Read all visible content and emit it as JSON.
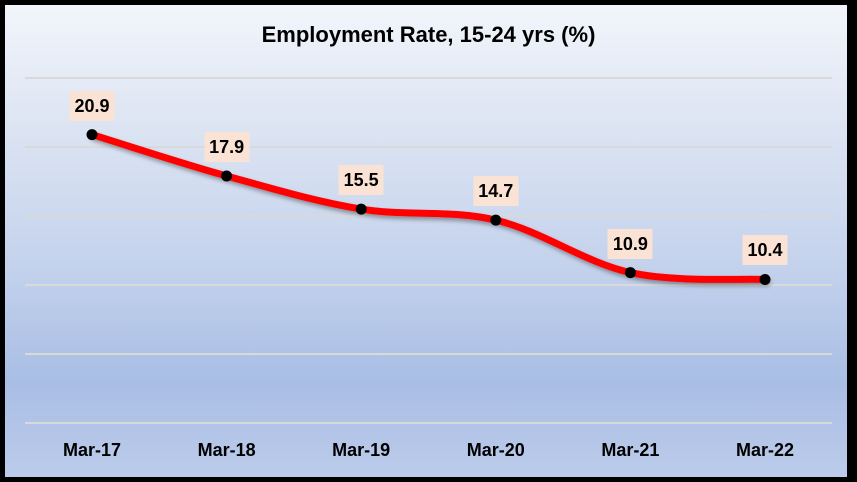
{
  "chart_data": {
    "type": "line",
    "title": "Employment Rate, 15-24 yrs (%)",
    "xlabel": "",
    "ylabel": "",
    "categories": [
      "Mar-17",
      "Mar-18",
      "Mar-19",
      "Mar-20",
      "Mar-21",
      "Mar-22"
    ],
    "series": [
      {
        "name": "Employment Rate, 15-24 yrs (%)",
        "values": [
          20.9,
          17.9,
          15.5,
          14.7,
          10.9,
          10.4
        ],
        "color": "#ff0000"
      }
    ],
    "ylim": [
      0,
      25
    ],
    "grid": true,
    "y_tick_labels_visible": false,
    "data_labels": [
      "20.9",
      "17.9",
      "15.5",
      "14.7",
      "10.9",
      "10.4"
    ],
    "smooth": true,
    "legend": "none"
  },
  "colors": {
    "line": "#ff0000",
    "marker": "#000000",
    "label_bg": "#fae3d4",
    "border": "#000000"
  }
}
